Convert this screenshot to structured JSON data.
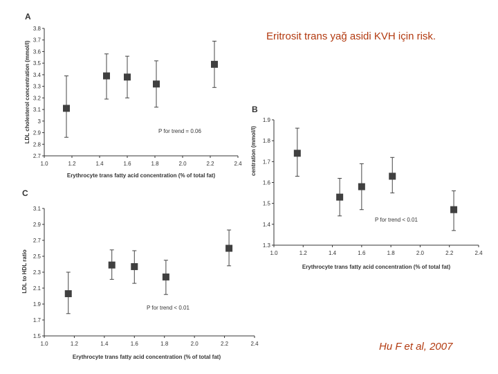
{
  "slide": {
    "title": "Eritrosit trans yağ asidi KVH için risk.",
    "citation": "Hu F et al, 2007"
  },
  "colors": {
    "accent_text": "#b23a10",
    "marker": "#404040",
    "axis": "#333333"
  },
  "chart_data": [
    {
      "panel": "A",
      "type": "scatter",
      "xlabel": "Erythrocyte trans fatty acid concentration (% of total fat)",
      "ylabel": "LDL cholesterol concentration (mmol/l)",
      "xlim": [
        1.0,
        2.4
      ],
      "ylim": [
        2.7,
        3.8
      ],
      "xticks": [
        "1.0",
        "1.2",
        "1.4",
        "1.6",
        "1.8",
        "2.0",
        "2.2",
        "2.4"
      ],
      "yticks": [
        "2.7",
        "2.8",
        "2.9",
        "3",
        "3.1",
        "3.2",
        "3.3",
        "3.4",
        "3.5",
        "3.6",
        "3.7",
        "3.8"
      ],
      "x": [
        1.16,
        1.45,
        1.6,
        1.81,
        2.23
      ],
      "y": [
        3.11,
        3.39,
        3.38,
        3.32,
        3.49
      ],
      "err_low": [
        2.86,
        3.19,
        3.2,
        3.12,
        3.29
      ],
      "err_high": [
        3.39,
        3.58,
        3.56,
        3.52,
        3.69
      ],
      "annotation": "P for trend = 0.06"
    },
    {
      "panel": "B",
      "type": "scatter",
      "xlabel": "Erythrocyte trans fatty acid concentration (% of total fat)",
      "ylabel": "centration (mmol/l)",
      "xlim": [
        1.0,
        2.4
      ],
      "ylim": [
        1.3,
        1.9
      ],
      "xticks": [
        "1.0",
        "1.2",
        "1.4",
        "1.6",
        "1.8",
        "2.0",
        "2.2",
        "2.4"
      ],
      "yticks": [
        "1.3",
        "1.4",
        "1.5",
        "1.6",
        "1.7",
        "1.8",
        "1.9"
      ],
      "x": [
        1.16,
        1.45,
        1.6,
        1.81,
        2.23
      ],
      "y": [
        1.74,
        1.53,
        1.58,
        1.63,
        1.47
      ],
      "err_low": [
        1.63,
        1.44,
        1.47,
        1.55,
        1.37
      ],
      "err_high": [
        1.86,
        1.62,
        1.69,
        1.72,
        1.56
      ],
      "annotation": "P for trend < 0.01"
    },
    {
      "panel": "C",
      "type": "scatter",
      "xlabel": "Erythrocyte trans fatty acid concentration (% of total fat)",
      "ylabel": "LDL to HDL ratio",
      "xlim": [
        1.0,
        2.4
      ],
      "ylim": [
        1.5,
        3.1
      ],
      "xticks": [
        "1.0",
        "1.2",
        "1.4",
        "1.6",
        "1.8",
        "2.0",
        "2.2",
        "2.4"
      ],
      "yticks": [
        "1.5",
        "1.7",
        "1.9",
        "2.1",
        "2.3",
        "2.5",
        "2.7",
        "2.9",
        "3.1"
      ],
      "x": [
        1.16,
        1.45,
        1.6,
        1.81,
        2.23
      ],
      "y": [
        2.03,
        2.39,
        2.37,
        2.24,
        2.6
      ],
      "err_low": [
        1.78,
        2.21,
        2.16,
        2.02,
        2.38
      ],
      "err_high": [
        2.3,
        2.58,
        2.57,
        2.45,
        2.83
      ],
      "annotation": "P for trend < 0.01"
    }
  ]
}
